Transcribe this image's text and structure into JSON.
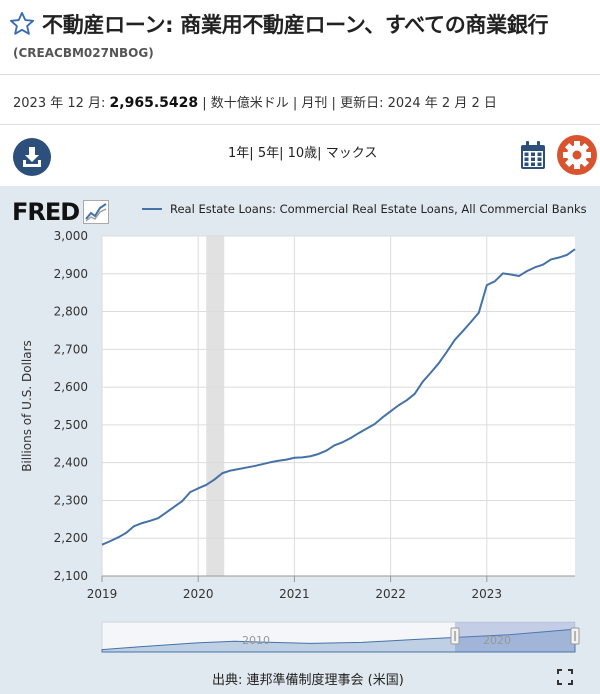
{
  "header": {
    "title": "不動産ローン: 商業用不動産ローン、すべての商業銀行",
    "series_id": "(CREACBM027NBOG)"
  },
  "meta": {
    "period": "2023 年 12 月:",
    "value": "2,965.5428",
    "details": "| 数十億米ドル | 月刊 | 更新日: 2024 年 2 月 2 日"
  },
  "toolbar": {
    "range_1y": "1年",
    "range_5y": "5年",
    "range_10y": "10歳",
    "range_max": "マックス",
    "sep": "|"
  },
  "logo": {
    "text": "FRED"
  },
  "source": "出典: 連邦準備制度理事会 (米国)",
  "navigator": {
    "label_2010": "2010",
    "label_2020": "2020"
  },
  "colors": {
    "series": "#4572a7",
    "panel": "#e1e9f0",
    "recession": "#e1e1e1",
    "download": "#2c4f7c",
    "gear": "#d9532f"
  },
  "icons": {
    "favorite": "star-icon",
    "download": "download-icon",
    "calendar": "calendar-icon",
    "settings": "gear-icon",
    "fullscreen": "fullscreen-icon"
  },
  "chart_data": {
    "type": "line",
    "title": "",
    "xlabel": "",
    "ylabel": "Billions of U.S. Dollars",
    "ylim": [
      2100,
      3000
    ],
    "yticks": [
      2100,
      2200,
      2300,
      2400,
      2500,
      2600,
      2700,
      2800,
      2900,
      3000
    ],
    "ytick_labels": [
      "2,100",
      "2,200",
      "2,300",
      "2,400",
      "2,500",
      "2,600",
      "2,700",
      "2,800",
      "2,900",
      "3,000"
    ],
    "xlim": [
      "2019-01",
      "2023-12"
    ],
    "xticks": [
      "2019-01",
      "2020-01",
      "2021-01",
      "2022-01",
      "2023-01"
    ],
    "xtick_labels": [
      "2019",
      "2020",
      "2021",
      "2022",
      "2023"
    ],
    "grid": true,
    "legend_position": "top",
    "recession": {
      "start": "2020-02",
      "end": "2020-04"
    },
    "series": [
      {
        "name": "Real Estate Loans: Commercial Real Estate Loans, All Commercial Banks",
        "color": "#4572a7",
        "x": [
          "2019-01",
          "2019-02",
          "2019-03",
          "2019-04",
          "2019-05",
          "2019-06",
          "2019-07",
          "2019-08",
          "2019-09",
          "2019-10",
          "2019-11",
          "2019-12",
          "2020-01",
          "2020-02",
          "2020-03",
          "2020-04",
          "2020-05",
          "2020-06",
          "2020-07",
          "2020-08",
          "2020-09",
          "2020-10",
          "2020-11",
          "2020-12",
          "2021-01",
          "2021-02",
          "2021-03",
          "2021-04",
          "2021-05",
          "2021-06",
          "2021-07",
          "2021-08",
          "2021-09",
          "2021-10",
          "2021-11",
          "2021-12",
          "2022-01",
          "2022-02",
          "2022-03",
          "2022-04",
          "2022-05",
          "2022-06",
          "2022-07",
          "2022-08",
          "2022-09",
          "2022-10",
          "2022-11",
          "2022-12",
          "2023-01",
          "2023-02",
          "2023-03",
          "2023-04",
          "2023-05",
          "2023-06",
          "2023-07",
          "2023-08",
          "2023-09",
          "2023-10",
          "2023-11",
          "2023-12"
        ],
        "values": [
          2183,
          2192,
          2202,
          2214,
          2232,
          2240,
          2246,
          2253,
          2268,
          2283,
          2298,
          2322,
          2332,
          2341,
          2355,
          2372,
          2379,
          2383,
          2387,
          2391,
          2396,
          2401,
          2405,
          2408,
          2413,
          2414,
          2417,
          2423,
          2432,
          2446,
          2454,
          2465,
          2478,
          2490,
          2502,
          2520,
          2536,
          2552,
          2565,
          2582,
          2614,
          2638,
          2663,
          2693,
          2725,
          2748,
          2772,
          2797,
          2870,
          2880,
          2901,
          2898,
          2894,
          2907,
          2917,
          2924,
          2938,
          2943,
          2950,
          2965
        ]
      }
    ]
  }
}
